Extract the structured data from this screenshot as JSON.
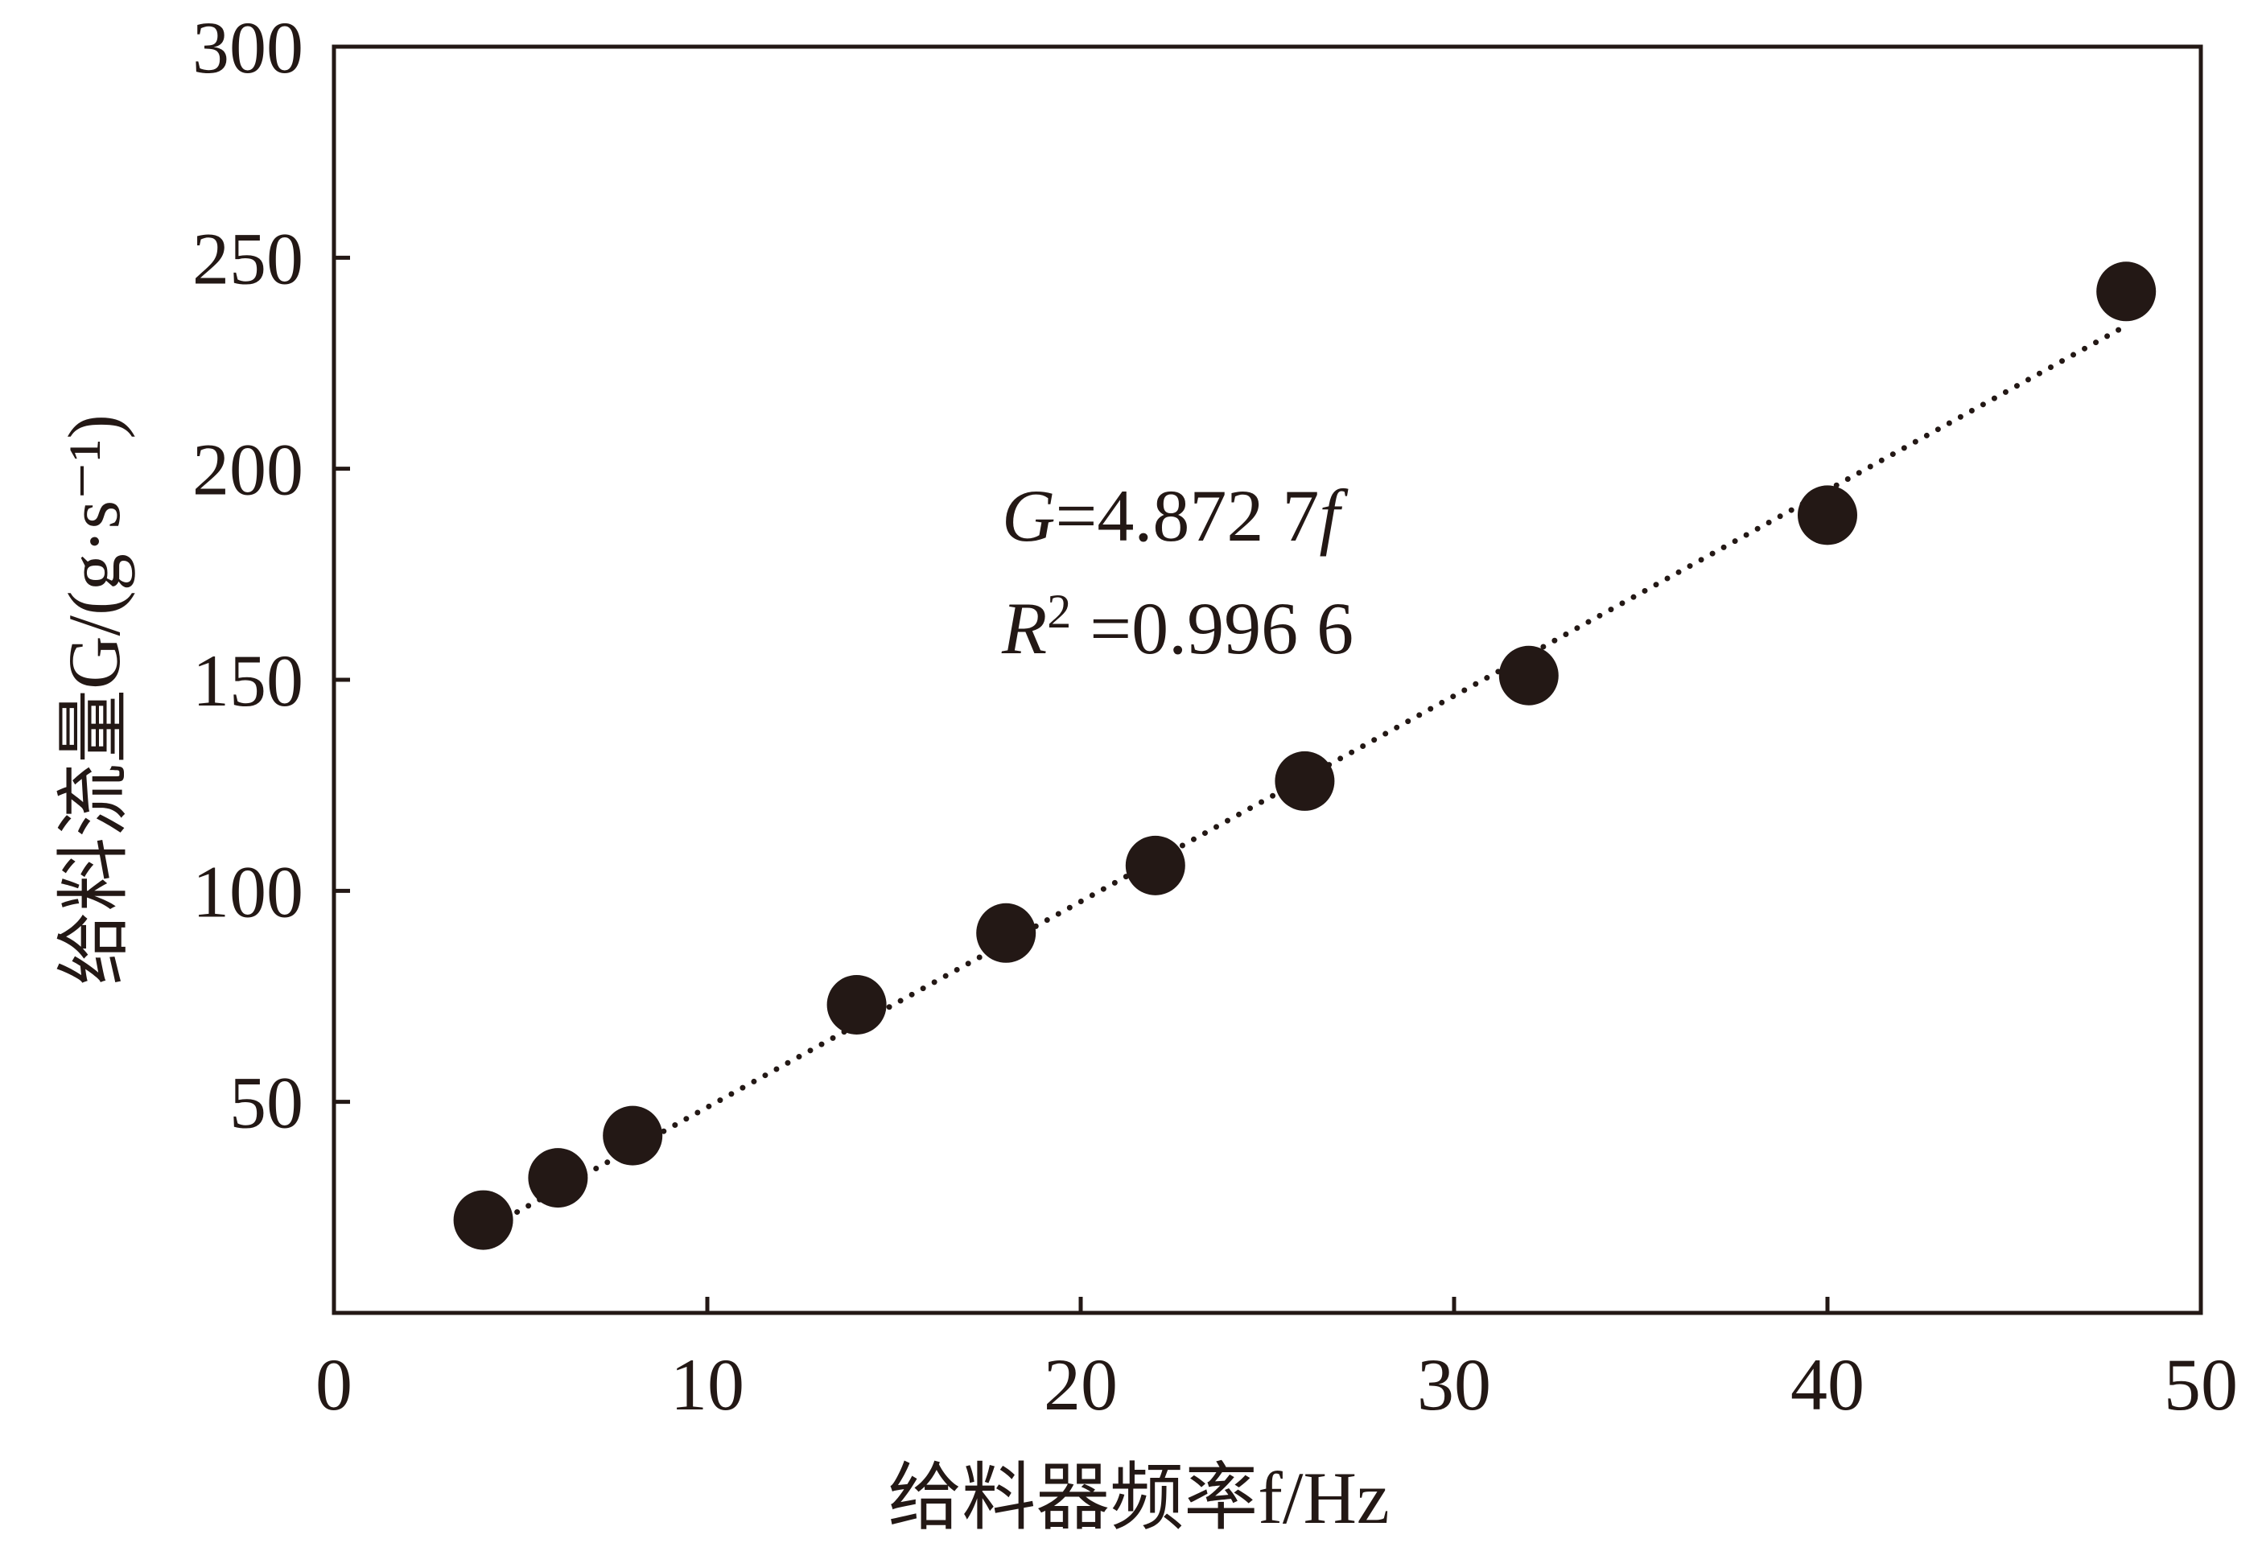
{
  "chart_data": {
    "type": "scatter",
    "xlabel": "给料器频率f/Hz",
    "ylabel": "给料流量G/(g·s⁻¹)",
    "xlim": [
      0,
      50
    ],
    "ylim": [
      0,
      300
    ],
    "x_ticks": [
      "0",
      "10",
      "20",
      "30",
      "40",
      "50"
    ],
    "y_ticks": [
      "50",
      "100",
      "150",
      "200",
      "250",
      "300"
    ],
    "grid": false,
    "series": [
      {
        "x": [
          4,
          6,
          8,
          14,
          18,
          22,
          26,
          32,
          40,
          48
        ],
        "y": [
          22,
          32,
          42,
          73,
          90,
          106,
          126,
          151,
          189,
          242
        ]
      }
    ],
    "fit_line": {
      "slope": 4.8727,
      "x_range": [
        4,
        48
      ],
      "style": "dotted"
    },
    "annotations": {
      "equation": {
        "G": "G",
        "rest": "=4.872 7",
        "f": "f"
      },
      "r_squared": {
        "R": "R",
        "sup": "2",
        "rest": " =0.996 6"
      }
    },
    "colors": {
      "axis": "#231815",
      "marker": "#231815",
      "fit_line": "#231815",
      "background": "#ffffff"
    }
  }
}
